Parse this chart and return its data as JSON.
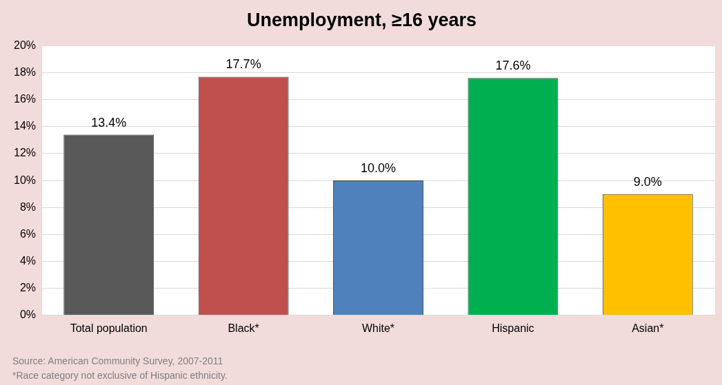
{
  "chart_data": {
    "type": "bar",
    "title": "Unemployment, ≥16 years",
    "categories": [
      "Total population",
      "Black*",
      "White*",
      "Hispanic",
      "Asian*"
    ],
    "values": [
      13.4,
      17.7,
      10.0,
      17.6,
      9.0
    ],
    "colors": [
      "#595959",
      "#c0504d",
      "#4f81bd",
      "#00b050",
      "#ffc000"
    ],
    "value_labels": [
      "13.4%",
      "17.7%",
      "10.0%",
      "17.6%",
      "9.0%"
    ],
    "ylim": [
      0,
      20
    ],
    "yticks": [
      {
        "value": 0,
        "label": "0%"
      },
      {
        "value": 2,
        "label": "2%"
      },
      {
        "value": 4,
        "label": "4%"
      },
      {
        "value": 6,
        "label": "6%"
      },
      {
        "value": 8,
        "label": "8%"
      },
      {
        "value": 10,
        "label": "10%"
      },
      {
        "value": 12,
        "label": "12%"
      },
      {
        "value": 14,
        "label": "14%"
      },
      {
        "value": 16,
        "label": "16%"
      },
      {
        "value": 18,
        "label": "18%"
      },
      {
        "value": 20,
        "label": "20%"
      }
    ],
    "grid": "y",
    "legend": false,
    "annotations": [
      "Source: American Community Survey, 2007-2011",
      "*Race category not exclusive of Hispanic ethnicity."
    ]
  }
}
